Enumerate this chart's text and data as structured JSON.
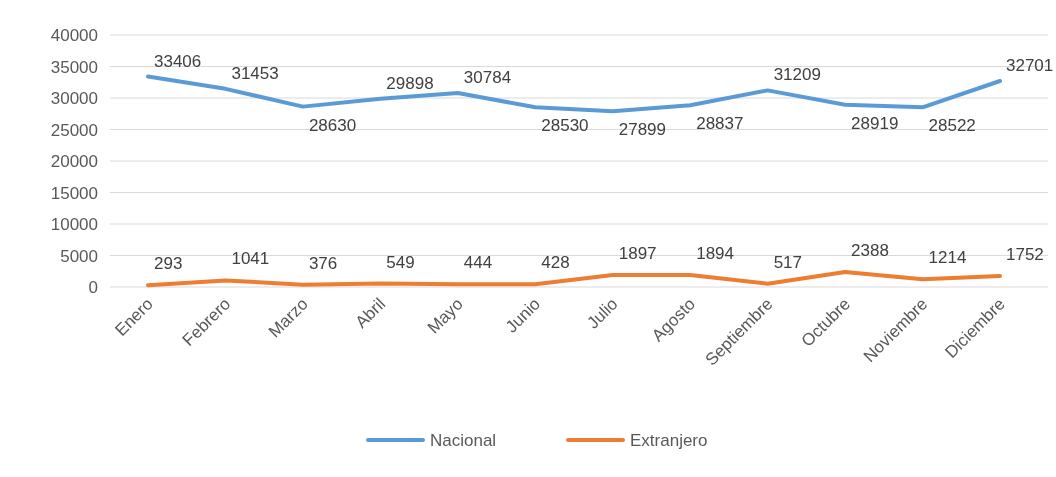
{
  "chart_data": {
    "type": "line",
    "categories": [
      "Enero",
      "Febrero",
      "Marzo",
      "Abril",
      "Mayo",
      "Junio",
      "Julio",
      "Agosto",
      "Septiembre",
      "Octubre",
      "Noviembre",
      "Diciembre"
    ],
    "series": [
      {
        "name": "Nacional",
        "color": "#5b9bd5",
        "values": [
          33406,
          31453,
          28630,
          29898,
          30784,
          28530,
          27899,
          28837,
          31209,
          28919,
          28522,
          32701
        ]
      },
      {
        "name": "Extranjero",
        "color": "#ed7d31",
        "values": [
          293,
          1041,
          376,
          549,
          444,
          428,
          1897,
          1894,
          517,
          2388,
          1214,
          1752
        ]
      }
    ],
    "ylim": [
      0,
      40000
    ],
    "yticks": [
      0,
      5000,
      10000,
      15000,
      20000,
      25000,
      30000,
      35000,
      40000
    ],
    "grid": "y",
    "legend": "bottom",
    "data_labels": true,
    "marker": "none",
    "line_style": "solid"
  }
}
